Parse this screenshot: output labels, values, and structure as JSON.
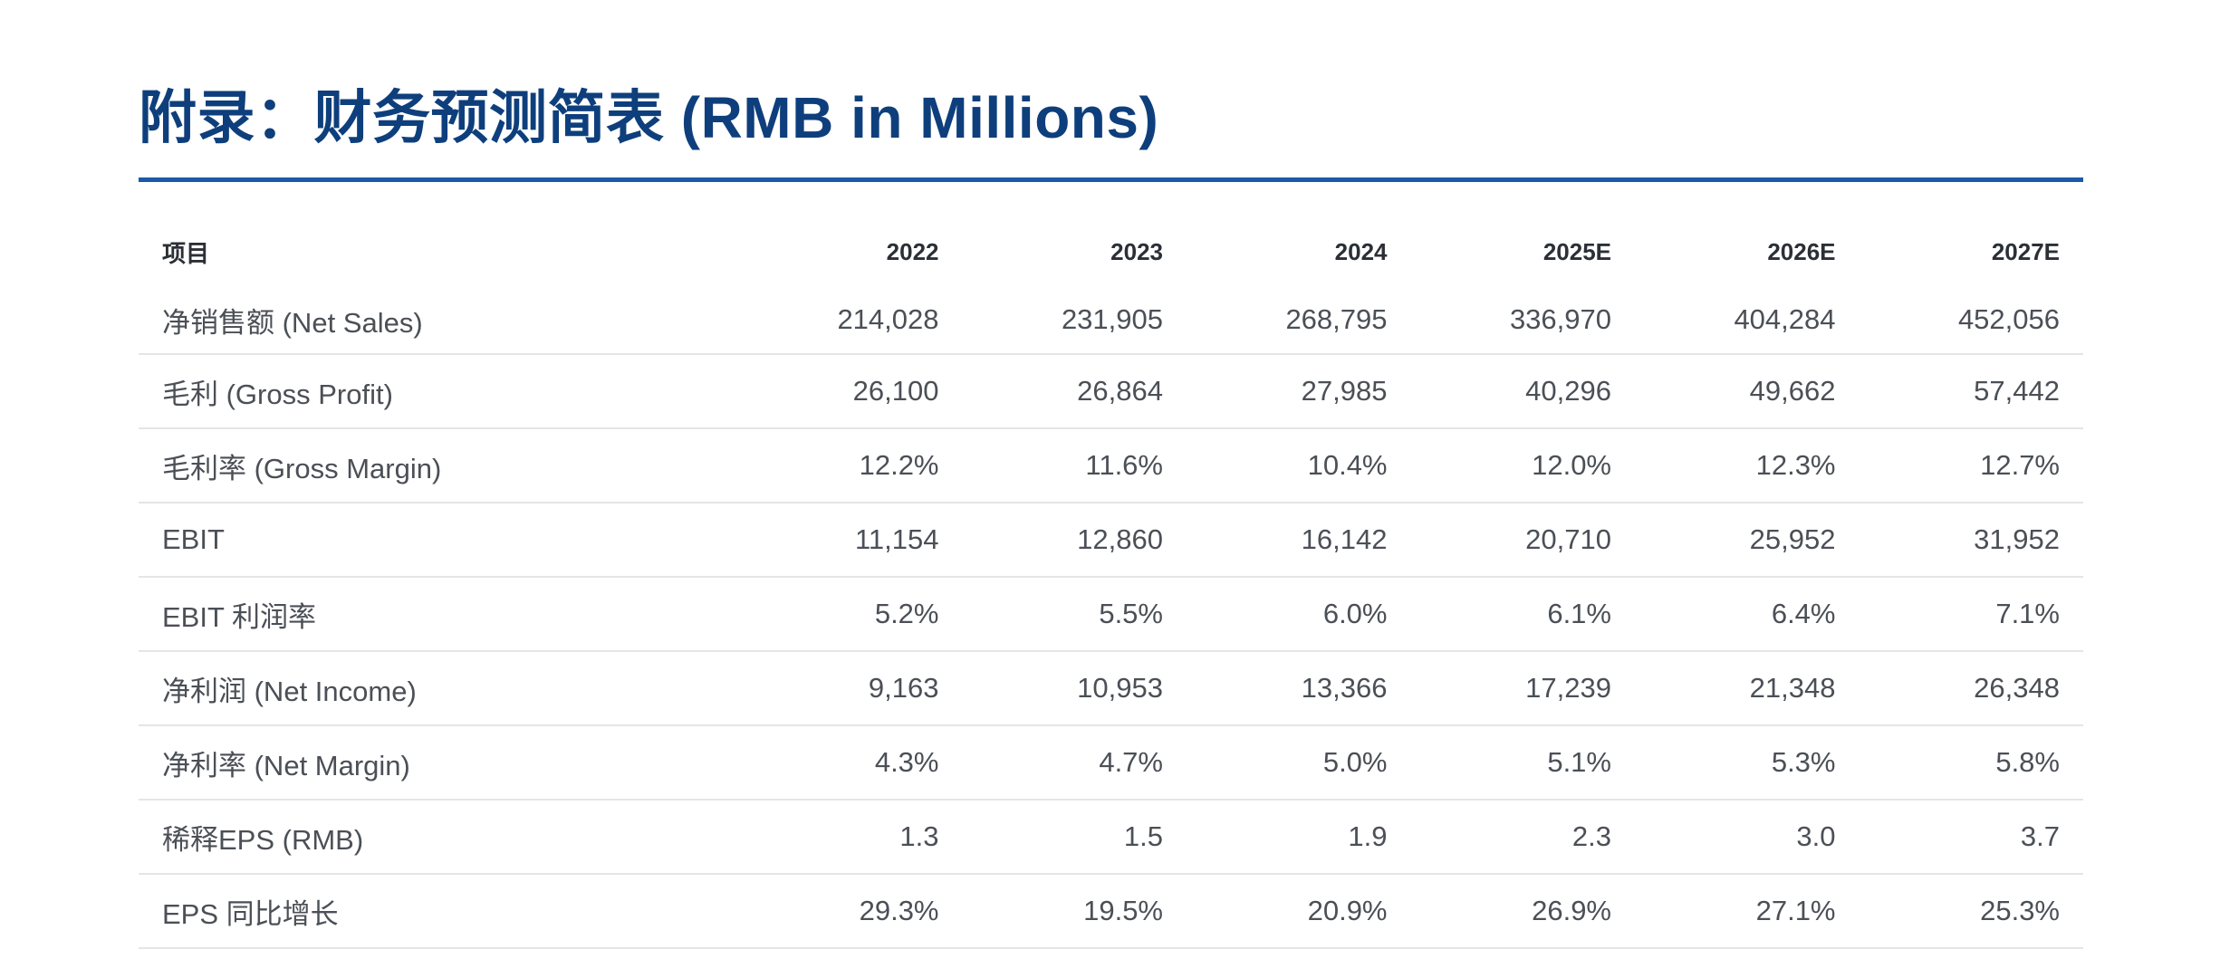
{
  "title": "附录：财务预测简表 (RMB in Millions)",
  "colors": {
    "title": "#0e3f7c",
    "rule": "#1a5aa6",
    "row_divider": "#e3e5e8",
    "body_text": "#4b4f56"
  },
  "table": {
    "headers": [
      "项目",
      "2022",
      "2023",
      "2024",
      "2025E",
      "2026E",
      "2027E"
    ],
    "rows": [
      {
        "label": "净销售额 (Net Sales)",
        "values": [
          "214,028",
          "231,905",
          "268,795",
          "336,970",
          "404,284",
          "452,056"
        ]
      },
      {
        "label": "毛利 (Gross Profit)",
        "values": [
          "26,100",
          "26,864",
          "27,985",
          "40,296",
          "49,662",
          "57,442"
        ]
      },
      {
        "label": "毛利率 (Gross Margin)",
        "values": [
          "12.2%",
          "11.6%",
          "10.4%",
          "12.0%",
          "12.3%",
          "12.7%"
        ]
      },
      {
        "label": "EBIT",
        "values": [
          "11,154",
          "12,860",
          "16,142",
          "20,710",
          "25,952",
          "31,952"
        ]
      },
      {
        "label": "EBIT 利润率",
        "values": [
          "5.2%",
          "5.5%",
          "6.0%",
          "6.1%",
          "6.4%",
          "7.1%"
        ]
      },
      {
        "label": "净利润 (Net Income)",
        "values": [
          "9,163",
          "10,953",
          "13,366",
          "17,239",
          "21,348",
          "26,348"
        ]
      },
      {
        "label": "净利率 (Net Margin)",
        "values": [
          "4.3%",
          "4.7%",
          "5.0%",
          "5.1%",
          "5.3%",
          "5.8%"
        ]
      },
      {
        "label": "稀释EPS (RMB)",
        "values": [
          "1.3",
          "1.5",
          "1.9",
          "2.3",
          "3.0",
          "3.7"
        ]
      },
      {
        "label": "EPS 同比增长",
        "values": [
          "29.3%",
          "19.5%",
          "20.9%",
          "26.9%",
          "27.1%",
          "25.3%"
        ]
      }
    ]
  }
}
